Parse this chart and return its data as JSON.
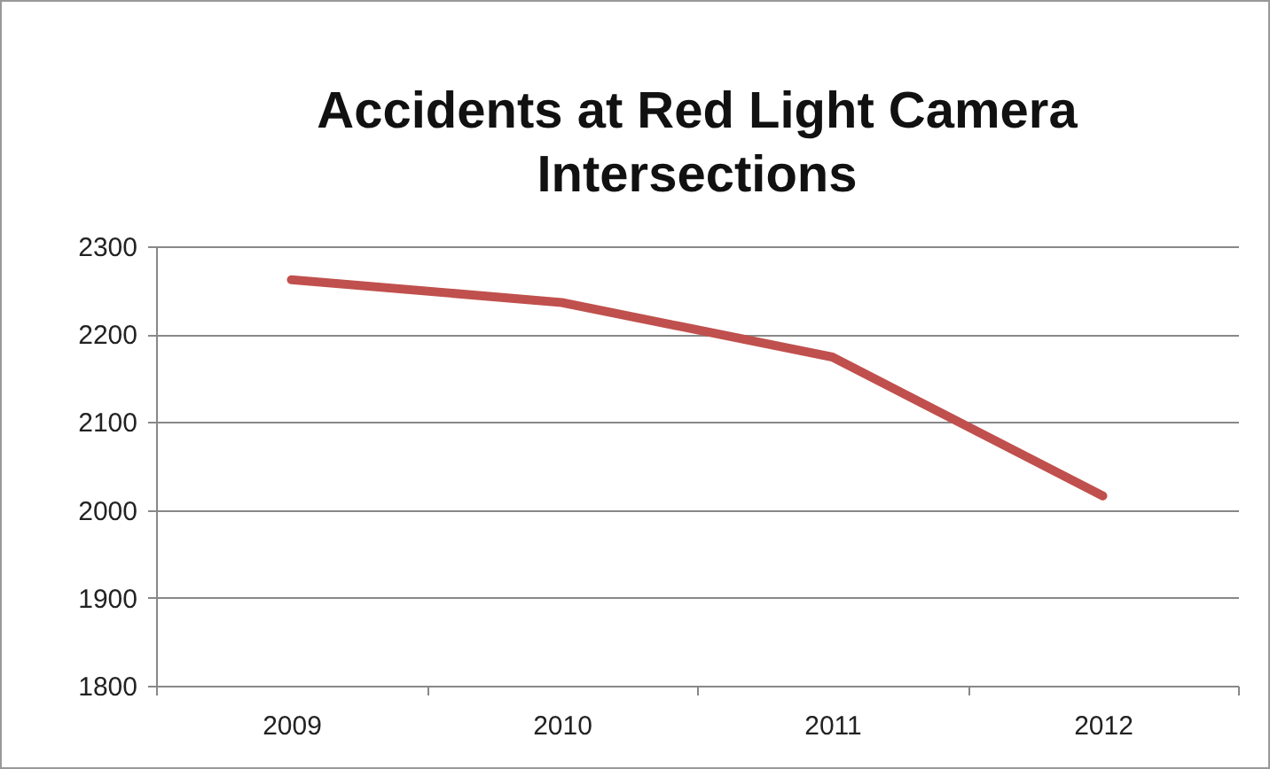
{
  "chart_data": {
    "type": "line",
    "title": "Accidents at Red Light Camera Intersections",
    "categories": [
      "2009",
      "2010",
      "2011",
      "2012"
    ],
    "series": [
      {
        "color": "#c0504d",
        "values": [
          2262,
          2236,
          2174,
          2016
        ]
      }
    ],
    "ylim": [
      1800,
      2300
    ],
    "yticks": [
      1800,
      1900,
      2000,
      2100,
      2200,
      2300
    ],
    "grid": "y",
    "marker": "none",
    "line_style": "solid"
  }
}
